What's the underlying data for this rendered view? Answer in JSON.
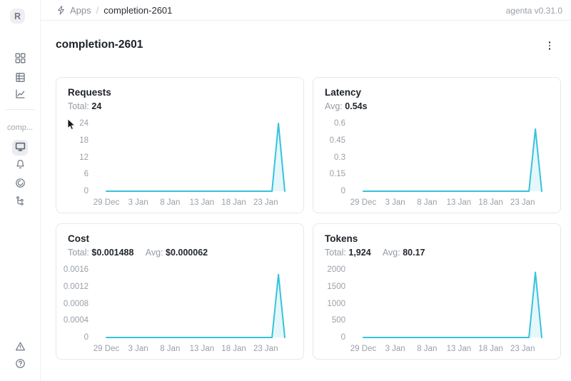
{
  "header": {
    "breadcrumb": {
      "app_section": "Apps",
      "separator": "/",
      "current": "completion-2601"
    },
    "version": "agenta v0.31.0"
  },
  "sidebar": {
    "logo_letter": "R",
    "project_label": "comp..."
  },
  "page": {
    "title": "completion-2601"
  },
  "colors": {
    "accent_line": "#36c3dc",
    "selected_bg": "#e9ecf0",
    "card_border": "#e5e8ec"
  },
  "chart_data": [
    {
      "type": "line",
      "title": "Requests",
      "stats": [
        {
          "label": "Total:",
          "value": "24"
        }
      ],
      "x": [
        "29 Dec",
        "30 Dec",
        "31 Dec",
        "1 Jan",
        "2 Jan",
        "3 Jan",
        "4 Jan",
        "5 Jan",
        "6 Jan",
        "7 Jan",
        "8 Jan",
        "9 Jan",
        "10 Jan",
        "11 Jan",
        "12 Jan",
        "13 Jan",
        "14 Jan",
        "15 Jan",
        "16 Jan",
        "17 Jan",
        "18 Jan",
        "19 Jan",
        "20 Jan",
        "21 Jan",
        "22 Jan",
        "23 Jan",
        "24 Jan",
        "25 Jan",
        "26 Jan"
      ],
      "values": [
        0,
        0,
        0,
        0,
        0,
        0,
        0,
        0,
        0,
        0,
        0,
        0,
        0,
        0,
        0,
        0,
        0,
        0,
        0,
        0,
        0,
        0,
        0,
        0,
        0,
        0,
        0,
        24,
        0
      ],
      "ylim": [
        0,
        24
      ],
      "ytick_labels": [
        "0",
        "6",
        "12",
        "18",
        "24"
      ],
      "xtick_labels": [
        "29 Dec",
        "3 Jan",
        "8 Jan",
        "13 Jan",
        "18 Jan",
        "23 Jan"
      ],
      "xtick_day_index": [
        0,
        5,
        10,
        15,
        20,
        25
      ],
      "grid": false,
      "legend": false,
      "line_color": "#36c3dc",
      "area_fill": "rgba(54,195,220,0.13)"
    },
    {
      "type": "line",
      "title": "Latency",
      "stats": [
        {
          "label": "Avg:",
          "value": "0.54s"
        }
      ],
      "x": [
        "29 Dec",
        "30 Dec",
        "31 Dec",
        "1 Jan",
        "2 Jan",
        "3 Jan",
        "4 Jan",
        "5 Jan",
        "6 Jan",
        "7 Jan",
        "8 Jan",
        "9 Jan",
        "10 Jan",
        "11 Jan",
        "12 Jan",
        "13 Jan",
        "14 Jan",
        "15 Jan",
        "16 Jan",
        "17 Jan",
        "18 Jan",
        "19 Jan",
        "20 Jan",
        "21 Jan",
        "22 Jan",
        "23 Jan",
        "24 Jan",
        "25 Jan",
        "26 Jan"
      ],
      "values": [
        0,
        0,
        0,
        0,
        0,
        0,
        0,
        0,
        0,
        0,
        0,
        0,
        0,
        0,
        0,
        0,
        0,
        0,
        0,
        0,
        0,
        0,
        0,
        0,
        0,
        0,
        0,
        0.55,
        0
      ],
      "ylim": [
        0,
        0.6
      ],
      "ytick_labels": [
        "0",
        "0.15",
        "0.3",
        "0.45",
        "0.6"
      ],
      "xtick_labels": [
        "29 Dec",
        "3 Jan",
        "8 Jan",
        "13 Jan",
        "18 Jan",
        "23 Jan"
      ],
      "xtick_day_index": [
        0,
        5,
        10,
        15,
        20,
        25
      ],
      "grid": false,
      "legend": false,
      "line_color": "#36c3dc",
      "area_fill": "rgba(54,195,220,0.13)"
    },
    {
      "type": "line",
      "title": "Cost",
      "stats": [
        {
          "label": "Total:",
          "value": "$0.001488"
        },
        {
          "label": "Avg:",
          "value": "$0.000062"
        }
      ],
      "x": [
        "29 Dec",
        "30 Dec",
        "31 Dec",
        "1 Jan",
        "2 Jan",
        "3 Jan",
        "4 Jan",
        "5 Jan",
        "6 Jan",
        "7 Jan",
        "8 Jan",
        "9 Jan",
        "10 Jan",
        "11 Jan",
        "12 Jan",
        "13 Jan",
        "14 Jan",
        "15 Jan",
        "16 Jan",
        "17 Jan",
        "18 Jan",
        "19 Jan",
        "20 Jan",
        "21 Jan",
        "22 Jan",
        "23 Jan",
        "24 Jan",
        "25 Jan",
        "26 Jan"
      ],
      "values": [
        0,
        0,
        0,
        0,
        0,
        0,
        0,
        0,
        0,
        0,
        0,
        0,
        0,
        0,
        0,
        0,
        0,
        0,
        0,
        0,
        0,
        0,
        0,
        0,
        0,
        0,
        0,
        0.001488,
        0
      ],
      "ylim": [
        0,
        0.0016
      ],
      "ytick_labels": [
        "0",
        "0.0004",
        "0.0008",
        "0.0012",
        "0.0016"
      ],
      "xtick_labels": [
        "29 Dec",
        "3 Jan",
        "8 Jan",
        "13 Jan",
        "18 Jan",
        "23 Jan"
      ],
      "xtick_day_index": [
        0,
        5,
        10,
        15,
        20,
        25
      ],
      "grid": false,
      "legend": false,
      "line_color": "#36c3dc",
      "area_fill": "rgba(54,195,220,0.13)"
    },
    {
      "type": "line",
      "title": "Tokens",
      "stats": [
        {
          "label": "Total:",
          "value": "1,924"
        },
        {
          "label": "Avg:",
          "value": "80.17"
        }
      ],
      "x": [
        "29 Dec",
        "30 Dec",
        "31 Dec",
        "1 Jan",
        "2 Jan",
        "3 Jan",
        "4 Jan",
        "5 Jan",
        "6 Jan",
        "7 Jan",
        "8 Jan",
        "9 Jan",
        "10 Jan",
        "11 Jan",
        "12 Jan",
        "13 Jan",
        "14 Jan",
        "15 Jan",
        "16 Jan",
        "17 Jan",
        "18 Jan",
        "19 Jan",
        "20 Jan",
        "21 Jan",
        "22 Jan",
        "23 Jan",
        "24 Jan",
        "25 Jan",
        "26 Jan"
      ],
      "values": [
        0,
        0,
        0,
        0,
        0,
        0,
        0,
        0,
        0,
        0,
        0,
        0,
        0,
        0,
        0,
        0,
        0,
        0,
        0,
        0,
        0,
        0,
        0,
        0,
        0,
        0,
        0,
        1924,
        0
      ],
      "ylim": [
        0,
        2000
      ],
      "ytick_labels": [
        "0",
        "500",
        "1000",
        "1500",
        "2000"
      ],
      "xtick_labels": [
        "29 Dec",
        "3 Jan",
        "8 Jan",
        "13 Jan",
        "18 Jan",
        "23 Jan"
      ],
      "xtick_day_index": [
        0,
        5,
        10,
        15,
        20,
        25
      ],
      "grid": false,
      "legend": false,
      "line_color": "#36c3dc",
      "area_fill": "rgba(54,195,220,0.13)"
    }
  ]
}
